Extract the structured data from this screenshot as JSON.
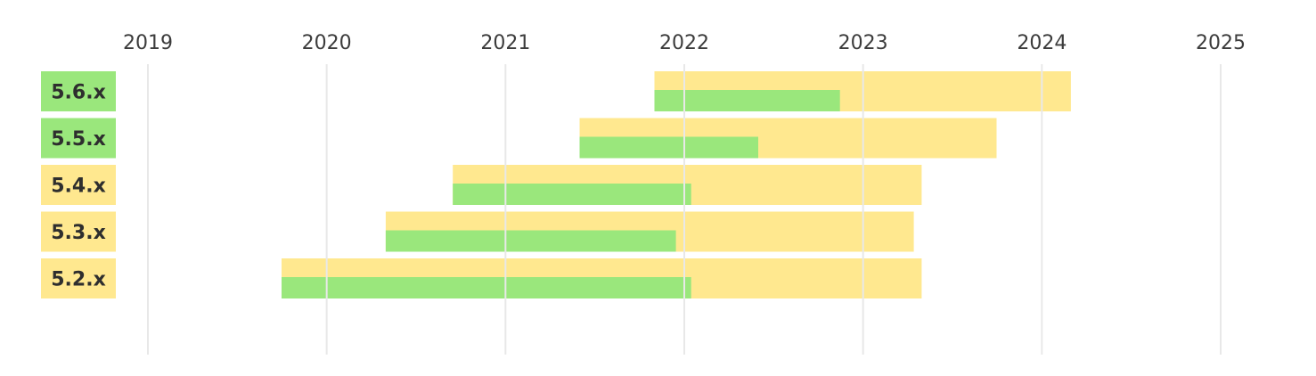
{
  "chart_data": {
    "type": "bar",
    "orientation": "horizontal-timeline",
    "x_ticks": [
      "2019",
      "2020",
      "2021",
      "2022",
      "2023",
      "2024",
      "2025"
    ],
    "xlim": [
      "2019-01-01",
      "2025-01-01"
    ],
    "grid": true,
    "legend": "none",
    "colors": {
      "active": "#9ae77c",
      "lts": "#ffe88f",
      "text": "#2e2e2e"
    },
    "categories": [
      "5.6.x",
      "5.5.x",
      "5.4.x",
      "5.3.x",
      "5.2.x"
    ],
    "series": [
      {
        "key": "lts",
        "ranges": [
          [
            "2021-11-01",
            "2024-03-01"
          ],
          [
            "2021-06-01",
            "2023-10-01"
          ],
          [
            "2020-09-15",
            "2023-05-01"
          ],
          [
            "2020-05-01",
            "2023-04-15"
          ],
          [
            "2019-10-01",
            "2023-05-01"
          ]
        ]
      },
      {
        "key": "active",
        "ranges": [
          [
            "2021-11-01",
            "2022-11-15"
          ],
          [
            "2021-06-01",
            "2022-06-01"
          ],
          [
            "2020-09-15",
            "2022-01-15"
          ],
          [
            "2020-05-01",
            "2021-12-15"
          ],
          [
            "2019-10-01",
            "2022-01-15"
          ]
        ]
      }
    ],
    "label_status": [
      "active",
      "active",
      "lts",
      "lts",
      "lts"
    ]
  }
}
